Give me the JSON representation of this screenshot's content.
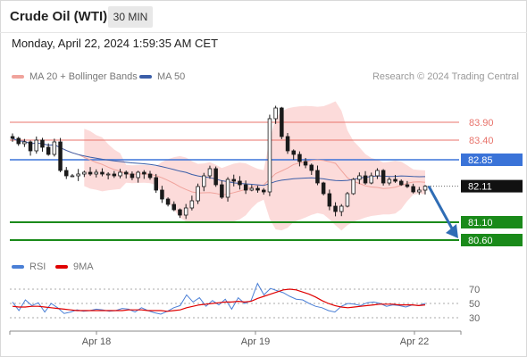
{
  "header": {
    "title": "Crude Oil (WTI)",
    "timeframe": "30 MIN",
    "datetime": "Monday, April 22, 2024 1:59:35 AM CET"
  },
  "legend": {
    "bb": "MA 20 + Bollinger Bands",
    "ma50": "MA 50",
    "copyright": "Research © 2024 Trading Central"
  },
  "rsi_legend": {
    "rsi": "RSI",
    "ma9": "9MA"
  },
  "colors": {
    "resistance": "#e8736b",
    "pivot": "#3a73d8",
    "support": "#1a8a1a",
    "bollinger_fill": "#fcd5d3",
    "ma20": "#f0a39c",
    "ma50": "#3b5ea8",
    "candle": "#1a1a1a",
    "rsi": "#4a7fd6",
    "rsi_ma": "#e00000",
    "arrow": "#2f6db5"
  },
  "chart_data": [
    {
      "type": "candlestick",
      "title": "Crude Oil (WTI)",
      "timeframe": "30 MIN",
      "x_tick_labels": [
        "Apr 18",
        "Apr 19",
        "Apr 22"
      ],
      "ylim": [
        80.2,
        84.9
      ],
      "closes": [
        83.45,
        83.3,
        83.35,
        83.1,
        83.4,
        83.2,
        83.0,
        83.35,
        82.55,
        82.4,
        82.4,
        82.45,
        82.5,
        82.45,
        82.5,
        82.45,
        82.45,
        82.4,
        82.5,
        82.45,
        82.35,
        82.5,
        82.45,
        82.35,
        82.0,
        81.75,
        81.6,
        81.45,
        81.3,
        81.5,
        81.7,
        82.1,
        82.4,
        82.6,
        82.15,
        81.8,
        82.3,
        82.25,
        82.15,
        82.0,
        82.05,
        82.0,
        81.95,
        84.0,
        84.3,
        83.5,
        83.1,
        83.0,
        82.8,
        82.7,
        82.55,
        82.2,
        81.9,
        81.55,
        81.4,
        81.55,
        81.9,
        82.3,
        82.4,
        82.2,
        82.4,
        82.55,
        82.2,
        82.3,
        82.25,
        82.15,
        82.1,
        81.95,
        82.0,
        82.11
      ],
      "levels": [
        {
          "label": "83.90",
          "value": 83.9,
          "kind": "resistance"
        },
        {
          "label": "83.40",
          "value": 83.4,
          "kind": "resistance"
        },
        {
          "label": "82.85",
          "value": 82.85,
          "kind": "pivot"
        },
        {
          "label": "82.11",
          "value": 82.11,
          "kind": "last"
        },
        {
          "label": "81.10",
          "value": 81.1,
          "kind": "support"
        },
        {
          "label": "80.60",
          "value": 80.6,
          "kind": "support"
        }
      ],
      "indicators": [
        "MA 20 + Bollinger Bands",
        "MA 50"
      ]
    },
    {
      "type": "line",
      "series": [
        {
          "name": "RSI",
          "values": [
            52,
            40,
            55,
            47,
            51,
            38,
            50,
            44,
            36,
            38,
            41,
            39,
            40,
            42,
            41,
            39,
            40,
            43,
            42,
            38,
            44,
            40,
            37,
            35,
            39,
            44,
            47,
            62,
            52,
            58,
            46,
            54,
            48,
            56,
            42,
            58,
            50,
            54,
            78,
            62,
            71,
            68,
            65,
            60,
            56,
            55,
            50,
            46,
            44,
            40,
            38,
            46,
            50,
            49,
            47,
            51,
            52,
            50,
            46,
            48,
            47,
            45,
            48,
            47,
            50
          ]
        },
        {
          "name": "9MA",
          "values": [
            46,
            45,
            45,
            46,
            46,
            45,
            44,
            43,
            42,
            41,
            40,
            40,
            40,
            40,
            40,
            40,
            40,
            40,
            41,
            41,
            41,
            40,
            40,
            40,
            39,
            40,
            41,
            44,
            46,
            48,
            49,
            50,
            51,
            52,
            52,
            53,
            52,
            53,
            57,
            60,
            63,
            66,
            69,
            70,
            69,
            66,
            63,
            59,
            54,
            50,
            47,
            45,
            44,
            45,
            46,
            47,
            48,
            49,
            49,
            49,
            48,
            48,
            48,
            47,
            48
          ]
        }
      ],
      "y_tick_labels": [
        "70",
        "50",
        "30"
      ],
      "ylim": [
        15,
        85
      ]
    }
  ]
}
